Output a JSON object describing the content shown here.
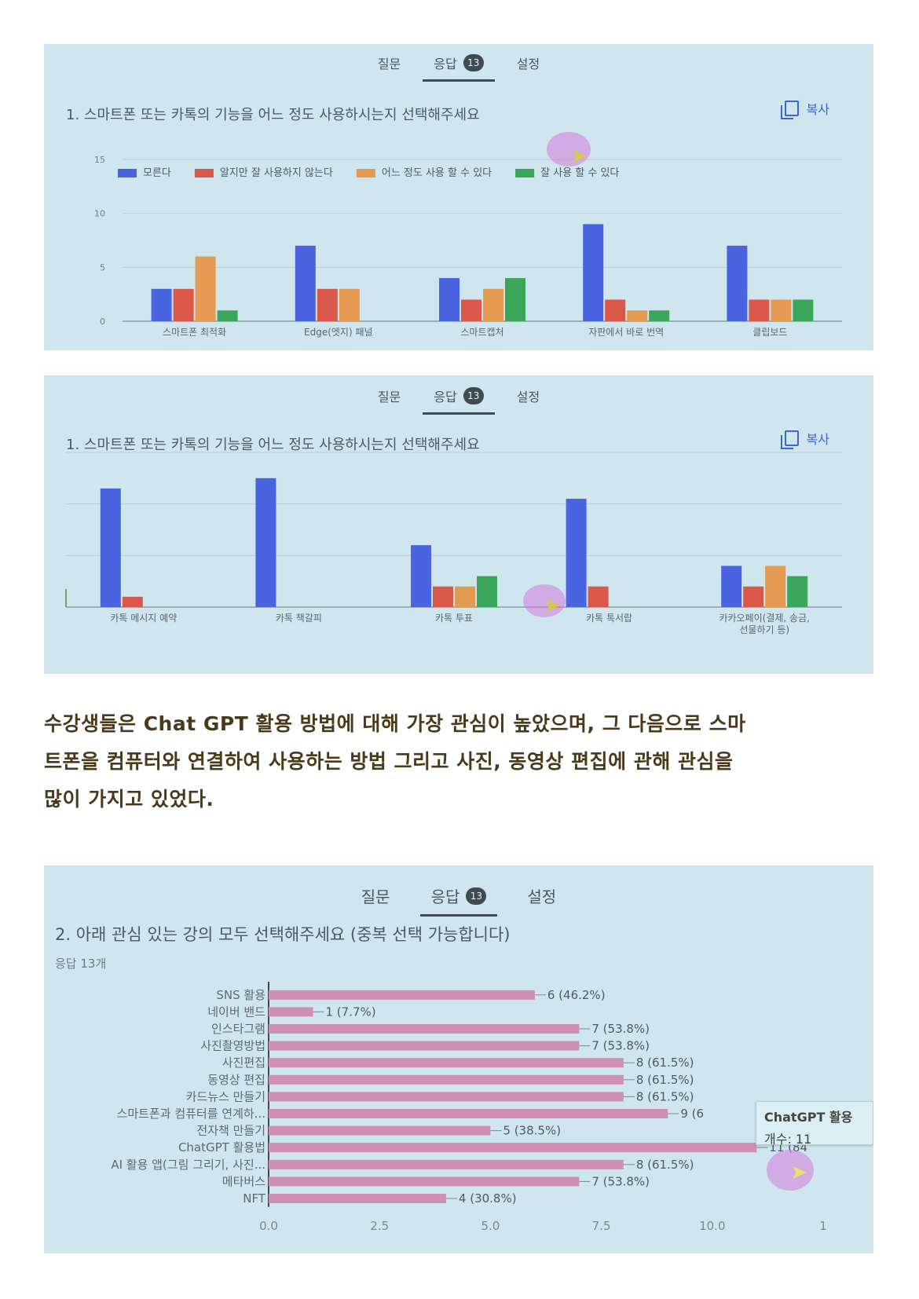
{
  "tabs": {
    "question": "질문",
    "responses": "응답",
    "count": "13",
    "settings": "설정"
  },
  "copy_label": "복사",
  "panel1": {
    "question": "1. 스마트폰 또는 카톡의 기능을 어느 정도 사용하시는지 선택해주세요",
    "chart_data": {
      "type": "bar",
      "categories": [
        "스마트폰 최적화",
        "Edge(엣지) 패널",
        "스마트캡처",
        "자판에서 바로 번역",
        "클립보드"
      ],
      "series": [
        {
          "name": "모른다",
          "values": [
            3,
            7,
            4,
            9,
            7
          ]
        },
        {
          "name": "알지만 잘 사용하지 않는다",
          "values": [
            3,
            3,
            2,
            2,
            2
          ]
        },
        {
          "name": "어느 정도 사용 할 수 있다",
          "values": [
            6,
            3,
            3,
            1,
            2
          ]
        },
        {
          "name": "잘 사용 할 수 있다",
          "values": [
            1,
            0,
            4,
            1,
            2
          ]
        }
      ],
      "yticks": [
        "0",
        "5",
        "10",
        "15"
      ],
      "ylim": [
        0,
        15
      ],
      "colors": [
        "#4a63e0",
        "#d9584a",
        "#e59a52",
        "#3aa65a"
      ],
      "legend_position": "top",
      "grid": true
    }
  },
  "panel2": {
    "question": "1. 스마트폰 또는 카톡의 기능을 어느 정도 사용하시는지 선택해주세요",
    "chart_data": {
      "type": "bar",
      "categories": [
        "카톡 메시지 예약",
        "카톡 책갈피",
        "카톡 투표",
        "카톡 톡서랍",
        "카카오페이(결제, 송금, 선물하기 등)"
      ],
      "series": [
        {
          "name": "모른다",
          "values": [
            11.5,
            12.5,
            6,
            10.5,
            4
          ]
        },
        {
          "name": "알지만 잘 사용하지 않는다",
          "values": [
            1,
            0,
            2,
            2,
            2
          ]
        },
        {
          "name": "어느 정도 사용 할 수 있다",
          "values": [
            0,
            0,
            2,
            0,
            4
          ]
        },
        {
          "name": "잘 사용 할 수 있다",
          "values": [
            0,
            0,
            3,
            0,
            3
          ]
        }
      ],
      "ylim": [
        0,
        15
      ],
      "colors": [
        "#4a63e0",
        "#d9584a",
        "#e59a52",
        "#3aa65a"
      ],
      "grid": true
    }
  },
  "paragraph": [
    "수강생들은 Chat GPT 활용 방법에 대해 가장 관심이 높았으며, 그 다음으로 스마",
    "트폰을 컴퓨터와 연결하여 사용하는 방법 그리고 사진, 동영상 편집에 관해 관심을",
    "많이 가지고 있었다."
  ],
  "panel3": {
    "question": "2. 아래 관심 있는 강의 모두 선택해주세요 (중복 선택 가능합니다)",
    "subtitle": "응답 13개",
    "tooltip": {
      "title": "ChatGPT 활용",
      "value": "개수: 11"
    },
    "chart_data": {
      "type": "bar",
      "orientation": "horizontal",
      "categories": [
        "SNS 활용",
        "네이버 밴드",
        "인스타그램",
        "사진촬영방법",
        "사진편집",
        "동영상 편집",
        "카드뉴스 만들기",
        "스마트폰과 컴퓨터를 연계하...",
        "전자책 만들기",
        "ChatGPT 활용법",
        "AI 활용 앱(그림 그리기, 사진...",
        "메타버스",
        "NFT"
      ],
      "values": [
        6,
        1,
        7,
        7,
        8,
        8,
        8,
        9,
        5,
        11,
        8,
        7,
        4
      ],
      "labels": [
        "6 (46.2%)",
        "1 (7.7%)",
        "7 (53.8%)",
        "7 (53.8%)",
        "8 (61.5%)",
        "8 (61.5%)",
        "8 (61.5%)",
        "9 (6",
        "5 (38.5%)",
        "11 (84",
        "8 (61.5%)",
        "7 (53.8%)",
        "4 (30.8%)"
      ],
      "xticks": [
        "0.0",
        "2.5",
        "5.0",
        "7.5",
        "10.0",
        "1"
      ],
      "xlim": [
        0,
        12.5
      ],
      "color": "#cf8fb0"
    }
  }
}
